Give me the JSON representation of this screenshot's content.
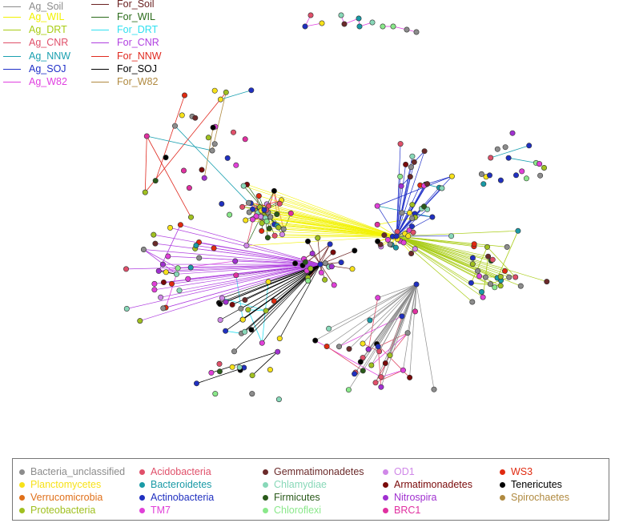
{
  "edge_legend": [
    {
      "label": "Ag_Soil",
      "color": "#8c8c8c"
    },
    {
      "label": "Ag_WIL",
      "color": "#f2f200"
    },
    {
      "label": "Ag_DRT",
      "color": "#a8cc14"
    },
    {
      "label": "Ag_CNR",
      "color": "#e0506a"
    },
    {
      "label": "Ag_NNW",
      "color": "#1aa0b0"
    },
    {
      "label": "Ag_SOJ",
      "color": "#2030c8"
    },
    {
      "label": "Ag_W82",
      "color": "#e040e0"
    },
    {
      "label": "For_Soil",
      "color": "#6b2222"
    },
    {
      "label": "For_WIL",
      "color": "#2a6b1a"
    },
    {
      "label": "For_DRT",
      "color": "#30e0f0"
    },
    {
      "label": "For_CNR",
      "color": "#b040e0"
    },
    {
      "label": "For_NNW",
      "color": "#e02a20"
    },
    {
      "label": "For_SOJ",
      "color": "#000000"
    },
    {
      "label": "For_W82",
      "color": "#b08a40"
    }
  ],
  "node_legend": [
    {
      "label": "Bacteria_unclassified",
      "color": "#8c8c8c"
    },
    {
      "label": "Planctomycetes",
      "color": "#f7e21a"
    },
    {
      "label": "Verrucomicrobia",
      "color": "#e0701a"
    },
    {
      "label": "Proteobacteria",
      "color": "#a0c020"
    },
    {
      "label": "Acidobacteria",
      "color": "#e0506a"
    },
    {
      "label": "Bacteroidetes",
      "color": "#1a9aa6"
    },
    {
      "label": "Actinobacteria",
      "color": "#2030c0"
    },
    {
      "label": "TM7",
      "color": "#e040d8"
    },
    {
      "label": "Gemmatimonadetes",
      "color": "#6b2a2a"
    },
    {
      "label": "Chlamydiae",
      "color": "#88d8b8"
    },
    {
      "label": "Firmicutes",
      "color": "#2a5a1a"
    },
    {
      "label": "Chloroflexi",
      "color": "#8ae88a"
    },
    {
      "label": "OD1",
      "color": "#d088e8"
    },
    {
      "label": "Armatimonadetes",
      "color": "#7a0a0a"
    },
    {
      "label": "Nitrospira",
      "color": "#a030d0"
    },
    {
      "label": "BRC1",
      "color": "#e030a0"
    },
    {
      "label": "WS3",
      "color": "#e02a10"
    },
    {
      "label": "Tenericutes",
      "color": "#000000"
    },
    {
      "label": "Spirochaetes",
      "color": "#b08a40"
    }
  ]
}
